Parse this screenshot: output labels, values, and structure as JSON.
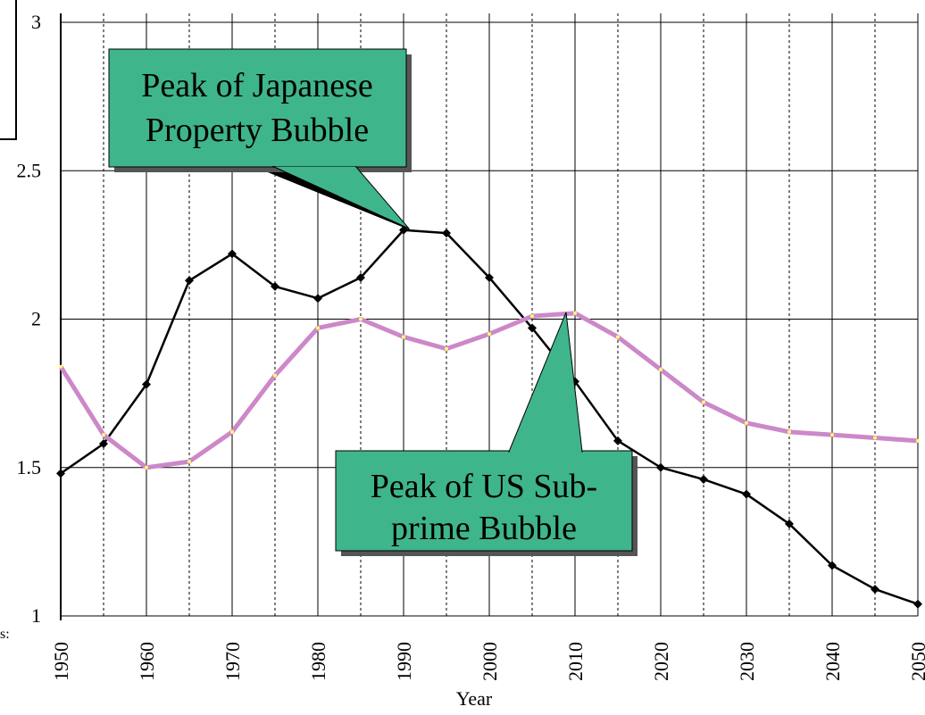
{
  "chart_data": {
    "type": "line",
    "x_label": "Year",
    "x": [
      1950,
      1955,
      1960,
      1965,
      1970,
      1975,
      1980,
      1985,
      1990,
      1995,
      2000,
      2005,
      2010,
      2015,
      2020,
      2025,
      2030,
      2035,
      2040,
      2045,
      2050
    ],
    "series": [
      {
        "color": "#000000",
        "values": [
          1.48,
          1.58,
          1.78,
          2.13,
          2.22,
          2.11,
          2.07,
          2.14,
          2.3,
          2.29,
          2.14,
          1.97,
          1.79,
          1.59,
          1.5,
          1.46,
          1.41,
          1.31,
          1.17,
          1.09,
          1.04
        ]
      },
      {
        "color": "#cc88c8",
        "values": [
          1.84,
          1.61,
          1.5,
          1.52,
          1.62,
          1.81,
          1.97,
          2.0,
          1.94,
          1.9,
          1.95,
          2.01,
          2.02,
          1.94,
          1.83,
          1.72,
          1.65,
          1.62,
          1.61,
          1.6,
          1.59
        ]
      }
    ],
    "xlim": [
      1950,
      2050
    ],
    "xticks": [
      1950,
      1960,
      1970,
      1980,
      1990,
      2000,
      2010,
      2020,
      2030,
      2040,
      2050
    ],
    "ylim": [
      1,
      3
    ],
    "yticks": [
      1,
      1.5,
      2,
      2.5,
      3
    ],
    "grid": true,
    "annotations": [
      {
        "text": [
          "Peak of Japanese",
          "Property Bubble"
        ]
      },
      {
        "text": [
          "Peak of US Sub-",
          "prime Bubble"
        ]
      }
    ],
    "fragment": "s:"
  }
}
